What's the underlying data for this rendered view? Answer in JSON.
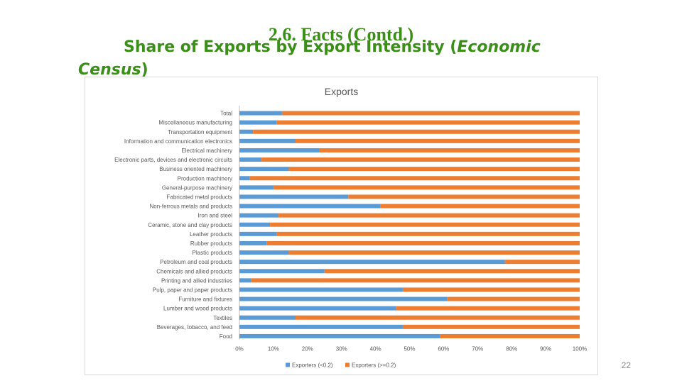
{
  "slide": {
    "title": "2.6. Facts (Contd.)",
    "subtitle_line1": "Share of Exports by Export Intensity (",
    "subtitle_italic1": "Economic",
    "subtitle_line2_italic": "Census",
    "subtitle_line2_end": ")",
    "page_number": "22"
  },
  "chart_data": {
    "type": "bar",
    "orientation": "horizontal",
    "stacked": "100%",
    "title": "Exports",
    "categories": [
      "Total",
      "Miscellaneous manufacturing",
      "Transportation equipment",
      "Information and communication electronics",
      "Electrical machinery",
      "Electronic parts, devices and electronic circuits",
      "Business oriented machinery",
      "Production machinery",
      "General-purpose machinery",
      "Fabricated metal products",
      "Non-ferrous metals and products",
      "Iron and steel",
      "Ceramic, stone and clay products",
      "Leather products",
      "Rubber products",
      "Plastic products",
      "Petroleum and coal products",
      "Chemicals and allied products",
      "Printing and allied industries",
      "Pulp, paper and paper products",
      "Furniture and fixtures",
      "Lumber and wood products",
      "Textiles",
      "Beverages, tobacco, and feed",
      "Food"
    ],
    "series": [
      {
        "name": "Exporters (<0.2)",
        "color": "#5b9bd5",
        "values": [
          12.5,
          11,
          4,
          16.5,
          23.5,
          6.5,
          14.5,
          3,
          10,
          32,
          41.5,
          11.5,
          9,
          11,
          8,
          14.5,
          78,
          25,
          3.5,
          48,
          61,
          46,
          16.5,
          48,
          59
        ]
      },
      {
        "name": "Exporters (>=0.2)",
        "color": "#ed7d31",
        "values": [
          87.5,
          89,
          96,
          83.5,
          76.5,
          93.5,
          85.5,
          97,
          90,
          68,
          58.5,
          88.5,
          91,
          89,
          92,
          85.5,
          22,
          75,
          96.5,
          52,
          39,
          54,
          83.5,
          52,
          41
        ]
      }
    ],
    "x_ticks": [
      "0%",
      "10%",
      "20%",
      "30%",
      "40%",
      "50%",
      "60%",
      "70%",
      "80%",
      "90%",
      "100%"
    ],
    "xlim": [
      0,
      100
    ],
    "grid": false,
    "legend_position": "bottom"
  }
}
